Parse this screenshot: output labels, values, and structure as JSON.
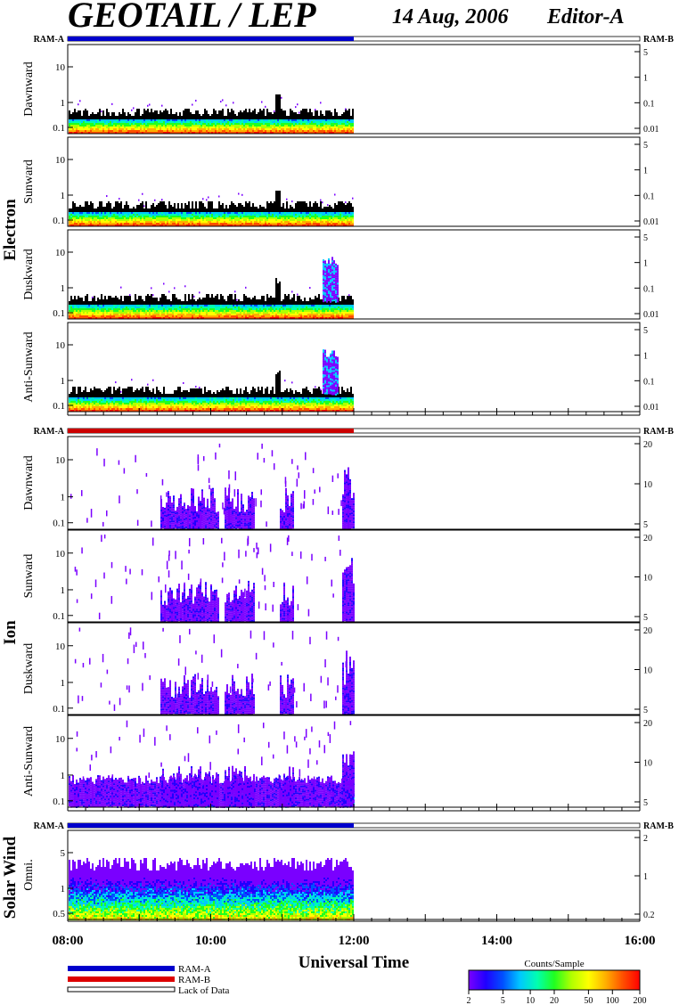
{
  "header": {
    "title": "GEOTAIL / LEP",
    "date": "14 Aug, 2006",
    "editor": "Editor-A"
  },
  "x_axis": {
    "label": "Universal Time",
    "ticks": [
      "08:00",
      "10:00",
      "12:00",
      "14:00",
      "16:00"
    ],
    "range": [
      "08:00",
      "16:00"
    ],
    "data_end": "12:00"
  },
  "ram": {
    "left_label": "RAM-A",
    "right_label": "RAM-B"
  },
  "legend": {
    "items": [
      {
        "label": "RAM-A",
        "color": "#0000cc"
      },
      {
        "label": "RAM-B",
        "color": "#dd0000"
      },
      {
        "label": "Lack of Data",
        "color": "#ffffff"
      }
    ]
  },
  "colorbar": {
    "title": "Counts/Sample",
    "ticks": [
      "2",
      "5",
      "10",
      "20",
      "50",
      "100",
      "200"
    ],
    "colors": [
      "#7a00ff",
      "#2000ff",
      "#0050ff",
      "#00c8ff",
      "#00ffb0",
      "#20ff20",
      "#b0ff00",
      "#ffff00",
      "#ffb000",
      "#ff5000",
      "#ff0000"
    ]
  },
  "groups": [
    {
      "label": "Electron",
      "ram_bar_color": "#0000cc"
    },
    {
      "label": "Ion",
      "ram_bar_color": "#cc0000"
    },
    {
      "label": "Solar Wind",
      "ram_bar_color": "#0000cc"
    }
  ],
  "panels": [
    {
      "label": "Dawnward",
      "left_ticks": [
        "10",
        "1",
        "0.1"
      ],
      "right_ticks": [
        "5",
        "1",
        "0.1",
        "0.01"
      ]
    },
    {
      "label": "Sunward",
      "left_ticks": [
        "10",
        "1",
        "0.1"
      ],
      "right_ticks": [
        "5",
        "1",
        "0.1",
        "0.01"
      ]
    },
    {
      "label": "Duskward",
      "left_ticks": [
        "10",
        "1",
        "0.1"
      ],
      "right_ticks": [
        "5",
        "1",
        "0.1",
        "0.01"
      ]
    },
    {
      "label": "Anti-Sunward",
      "left_ticks": [
        "10",
        "1",
        "0.1"
      ],
      "right_ticks": [
        "5",
        "1",
        "0.1",
        "0.01"
      ]
    },
    {
      "label": "Dawnward",
      "left_ticks": [
        "10",
        "1",
        "0.1"
      ],
      "right_ticks": [
        "20",
        "10",
        "5"
      ]
    },
    {
      "label": "Sunward",
      "left_ticks": [
        "10",
        "1",
        "0.1"
      ],
      "right_ticks": [
        "20",
        "10",
        "5"
      ]
    },
    {
      "label": "Duskward",
      "left_ticks": [
        "10",
        "1",
        "0.1"
      ],
      "right_ticks": [
        "20",
        "10",
        "5"
      ]
    },
    {
      "label": "Anti-Sunward",
      "left_ticks": [
        "10",
        "1",
        "0.1"
      ],
      "right_ticks": [
        "20",
        "10",
        "5"
      ]
    },
    {
      "label": "Omni.",
      "left_ticks": [
        "5",
        "1",
        "0.5"
      ],
      "right_ticks": [
        "2",
        "1",
        "0.2"
      ]
    }
  ],
  "chart_data": {
    "type": "heatmap",
    "title": "GEOTAIL / LEP",
    "xlabel": "Universal Time",
    "x_range": [
      "08:00",
      "16:00"
    ],
    "data_coverage": [
      "08:00",
      "12:00"
    ],
    "colorbar_label": "Counts/Sample",
    "colorbar_range": [
      2,
      200
    ],
    "features": [
      {
        "series": "Electron",
        "note_times": [
          "10:55",
          "11:45"
        ]
      },
      {
        "series": "Ion",
        "note_times": [
          "09:20-10:40",
          "11:50-12:00"
        ]
      }
    ]
  }
}
